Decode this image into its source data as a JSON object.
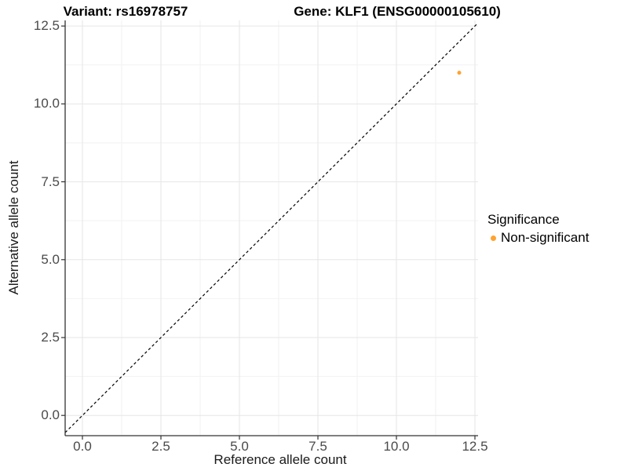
{
  "titles": {
    "variant": "Variant: rs16978757",
    "gene": "Gene: KLF1 (ENSG00000105610)"
  },
  "axes": {
    "x_label": "Reference allele count",
    "y_label": "Alternative allele count"
  },
  "legend": {
    "title": "Significance",
    "items": [
      {
        "label": "Non-significant",
        "color": "#FFA330"
      }
    ]
  },
  "chart_data": {
    "type": "scatter",
    "title": "Variant: rs16978757   Gene: KLF1 (ENSG00000105610)",
    "xlabel": "Reference allele count",
    "ylabel": "Alternative allele count",
    "xlim": [
      -0.55,
      12.6
    ],
    "ylim": [
      -0.65,
      12.68
    ],
    "x_tick_values": [
      0,
      2.5,
      5,
      7.5,
      10,
      12.5
    ],
    "y_tick_values": [
      0,
      2.5,
      5,
      7.5,
      10,
      12.5
    ],
    "x_tick_labels": [
      "0.0",
      "2.5",
      "5.0",
      "7.5",
      "10.0",
      "12.5"
    ],
    "y_tick_labels": [
      "0.0",
      "2.5",
      "5.0",
      "7.5",
      "10.0",
      "12.5"
    ],
    "x_minor_tick_values": [
      1.25,
      3.75,
      6.25,
      8.75,
      11.25
    ],
    "y_minor_tick_values": [
      1.25,
      3.75,
      6.25,
      8.75,
      11.25
    ],
    "grid": "major+minor",
    "legend_position": "right",
    "series": [
      {
        "name": "Non-significant",
        "color": "#FFA330",
        "points": [
          {
            "x": 12,
            "y": 11
          }
        ]
      }
    ],
    "reference_line": {
      "slope": 1,
      "intercept": 0,
      "style": "dashed",
      "color": "#000000"
    }
  },
  "style": {
    "background": "#FFFFFF",
    "axis_line_color": "#333333",
    "grid_major_color": "#E6E6E6",
    "grid_minor_color": "#F2F2F2",
    "tick_label_color": "#4a4a4a",
    "point_radius": 2.5,
    "dash_pattern": "3.5,3"
  }
}
